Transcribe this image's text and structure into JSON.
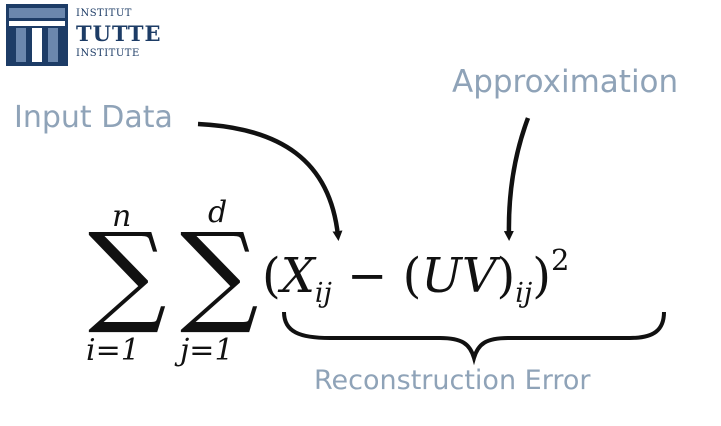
{
  "logo": {
    "line1": "INSTITUT",
    "line2": "TUTTE",
    "line3": "INSTITUTE"
  },
  "labels": {
    "input": "Input Data",
    "approximation": "Approximation",
    "reconstruction": "Reconstruction Error"
  },
  "formula": {
    "outer_upper": "n",
    "inner_upper": "d",
    "outer_lower": "i=1",
    "inner_lower": "j=1",
    "open_paren": "(",
    "x_symbol": "X",
    "x_sub": "ij",
    "minus": " − (",
    "uv": "UV",
    "close_inner": ")",
    "uv_sub": "ij",
    "close_outer": ")",
    "power": "2"
  },
  "colors": {
    "logo_blue": "#1d3c66",
    "logo_light": "#6b87ad",
    "label_gray": "#8fa3b8"
  }
}
